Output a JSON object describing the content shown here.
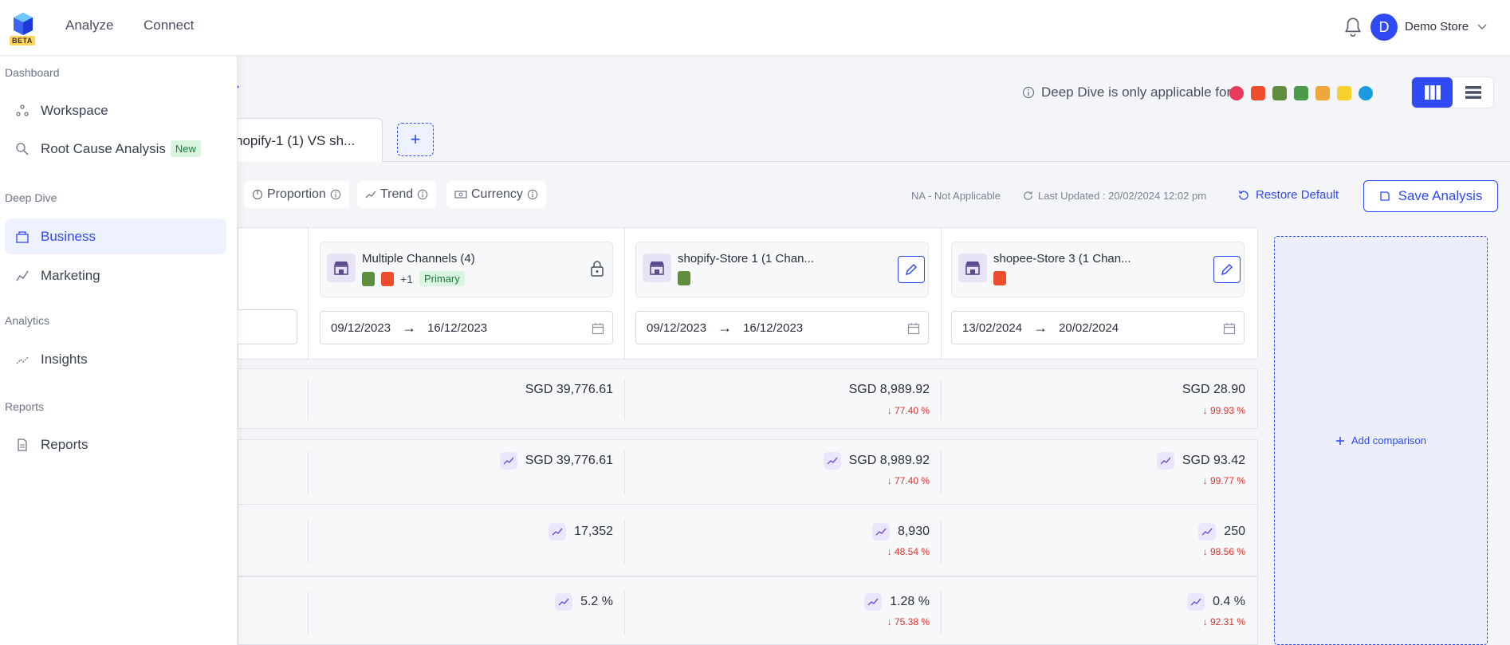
{
  "topbar": {
    "beta": "BETA",
    "nav": [
      "Analyze",
      "Connect"
    ],
    "avatar_initial": "D",
    "store_name": "Demo Store"
  },
  "sidebar": {
    "sections": [
      {
        "title": "Dashboard",
        "items": [
          {
            "label": "Workspace"
          },
          {
            "label": "Root Cause Analysis",
            "badge": "New"
          }
        ]
      },
      {
        "title": "Deep Dive",
        "items": [
          {
            "label": "Business",
            "active": true
          },
          {
            "label": "Marketing"
          }
        ]
      },
      {
        "title": "Analytics",
        "items": [
          {
            "label": "Insights"
          }
        ]
      },
      {
        "title": "Reports",
        "items": [
          {
            "label": "Reports"
          }
        ]
      }
    ]
  },
  "main": {
    "deep_dive_note": "Deep Dive is only applicable for",
    "tab_label": "hopify-1 (1) VS sh...",
    "add_tab": "+",
    "pills": [
      "Proportion",
      "Trend",
      "Currency"
    ],
    "na_text": "NA - Not Applicable",
    "last_updated": "Last Updated : 20/02/2024 12:02 pm",
    "restore": "Restore Default",
    "save": "Save Analysis",
    "add_comparison": "Add comparison",
    "stores": [
      {
        "title": "Multiple Channels (4)",
        "more": "+1",
        "badge": "Primary",
        "start": "09/12/2023",
        "end": "16/12/2023"
      },
      {
        "title": "shopify-Store 1 (1 Chan...",
        "start": "09/12/2023",
        "end": "16/12/2023"
      },
      {
        "title": "shopee-Store 3 (1 Chan...",
        "start": "13/02/2024",
        "end": "20/02/2024"
      }
    ],
    "date_arrow": "→",
    "rows": [
      {
        "cells": [
          {
            "value": "SGD 39,776.61"
          },
          {
            "value": "SGD 8,989.92",
            "change": "↓ 77.40 %"
          },
          {
            "value": "SGD 28.90",
            "change": "↓ 99.93 %"
          }
        ]
      },
      {
        "cells": [
          {
            "value": "SGD 39,776.61"
          },
          {
            "value": "SGD 8,989.92",
            "change": "↓ 77.40 %"
          },
          {
            "value": "SGD 93.42",
            "change": "↓ 99.77 %"
          }
        ]
      },
      {
        "cells": [
          {
            "value": "17,352"
          },
          {
            "value": "8,930",
            "change": "↓ 48.54 %"
          },
          {
            "value": "250",
            "change": "↓ 98.56 %"
          }
        ]
      },
      {
        "cells": [
          {
            "value": "5.2 %"
          },
          {
            "value": "1.28 %",
            "change": "↓ 75.38 %"
          },
          {
            "value": "0.4 %",
            "change": "↓ 92.31 %"
          }
        ]
      }
    ]
  }
}
